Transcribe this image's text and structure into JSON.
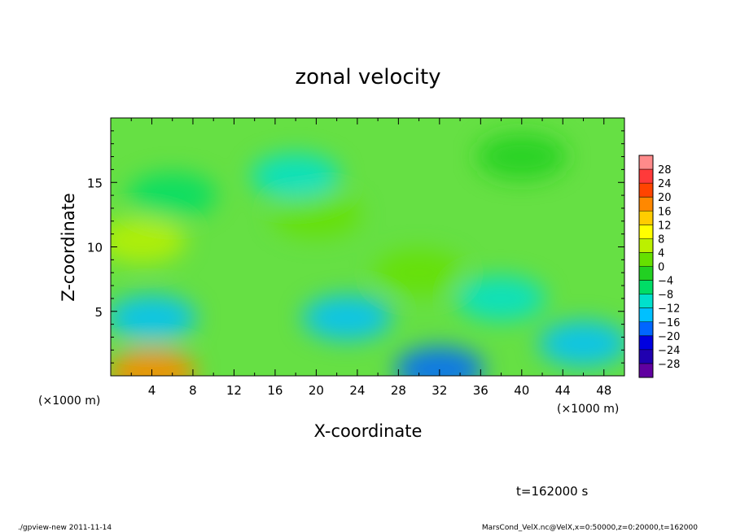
{
  "chart_data": {
    "type": "heatmap",
    "title": "zonal velocity",
    "xlabel": "X-coordinate",
    "ylabel": "Z-coordinate",
    "xunit_left": "(×1000 m)",
    "xunit_right": "(×1000 m)",
    "xlim": [
      0,
      50
    ],
    "ylim": [
      0,
      20
    ],
    "xticks": [
      "4",
      "8",
      "12",
      "16",
      "20",
      "24",
      "28",
      "32",
      "36",
      "40",
      "44",
      "48"
    ],
    "xtick_values": [
      4,
      8,
      12,
      16,
      20,
      24,
      28,
      32,
      36,
      40,
      44,
      48
    ],
    "yticks": [
      "5",
      "10",
      "15"
    ],
    "ytick_values": [
      5,
      10,
      15
    ],
    "colorbar": {
      "labels": [
        "28",
        "24",
        "20",
        "16",
        "12",
        "8",
        "4",
        "0",
        "−4",
        "−8",
        "−12",
        "−16",
        "−20",
        "−24",
        "−28"
      ],
      "colors": [
        "#ff8a8a",
        "#ff3a3a",
        "#ff4400",
        "#ff8800",
        "#ffcc00",
        "#ffff00",
        "#bbf000",
        "#66e000",
        "#22d022",
        "#00dd66",
        "#00e0cc",
        "#00c0ff",
        "#0066ff",
        "#0000e0",
        "#2000b0",
        "#6000a0"
      ]
    },
    "field_background": "#66e044",
    "features": [
      {
        "x": 4,
        "z": 0.3,
        "v": 20
      },
      {
        "x": 4,
        "z": 4.5,
        "v": -12
      },
      {
        "x": 3,
        "z": 10.5,
        "v": 8
      },
      {
        "x": 20,
        "z": 12.5,
        "v": 4
      },
      {
        "x": 18,
        "z": 15.5,
        "v": -8
      },
      {
        "x": 23,
        "z": 4.5,
        "v": -12
      },
      {
        "x": 32,
        "z": 0.5,
        "v": -16
      },
      {
        "x": 30,
        "z": 8,
        "v": 4
      },
      {
        "x": 38,
        "z": 6,
        "v": -8
      },
      {
        "x": 46,
        "z": 2.5,
        "v": -12
      },
      {
        "x": 6,
        "z": 14,
        "v": -4
      },
      {
        "x": 40,
        "z": 17,
        "v": 0
      }
    ]
  },
  "time_label": "t=162000 s",
  "footer_left": "./gpview-new  2011-11-14",
  "footer_right": "MarsCond_VelX.nc@VelX,x=0:50000,z=0:20000,t=162000"
}
